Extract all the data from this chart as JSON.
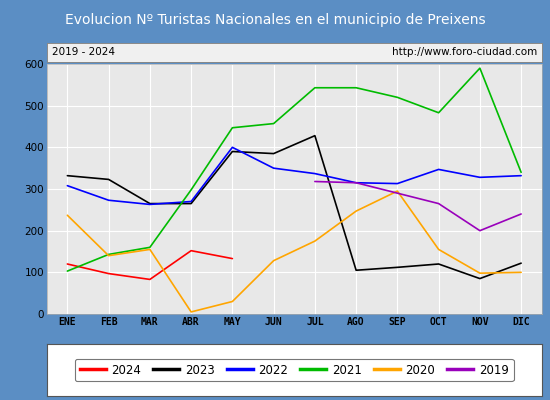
{
  "title": "Evolucion Nº Turistas Nacionales en el municipio de Preixens",
  "subtitle_left": "2019 - 2024",
  "subtitle_right": "http://www.foro-ciudad.com",
  "months": [
    "ENE",
    "FEB",
    "MAR",
    "ABR",
    "MAY",
    "JUN",
    "JUL",
    "AGO",
    "SEP",
    "OCT",
    "NOV",
    "DIC"
  ],
  "series": {
    "2024": [
      120,
      97,
      83,
      152,
      133,
      null,
      null,
      null,
      null,
      null,
      null,
      null
    ],
    "2023": [
      332,
      323,
      265,
      265,
      390,
      385,
      428,
      105,
      112,
      120,
      85,
      122
    ],
    "2022": [
      308,
      273,
      263,
      270,
      400,
      350,
      337,
      315,
      313,
      347,
      328,
      332
    ],
    "2021": [
      103,
      143,
      160,
      298,
      447,
      457,
      543,
      543,
      520,
      483,
      590,
      340
    ],
    "2020": [
      237,
      140,
      155,
      5,
      30,
      128,
      175,
      247,
      295,
      155,
      98,
      100
    ],
    "2019": [
      null,
      null,
      null,
      null,
      null,
      null,
      318,
      315,
      null,
      265,
      200,
      240
    ]
  },
  "colors": {
    "2024": "#ff0000",
    "2023": "#000000",
    "2022": "#0000ff",
    "2021": "#00bb00",
    "2020": "#ffa500",
    "2019": "#9900bb"
  },
  "ylim": [
    0,
    600
  ],
  "yticks": [
    0,
    100,
    200,
    300,
    400,
    500,
    600
  ],
  "title_bg_color": "#4d7ebf",
  "title_text_color": "#ffffff",
  "title_fontsize": 10,
  "outer_bg": "#5b8ec4",
  "inner_bg": "#e8e8e8",
  "subtitle_bg": "#f0f0f0",
  "fig_width": 5.5,
  "fig_height": 4.0,
  "dpi": 100
}
